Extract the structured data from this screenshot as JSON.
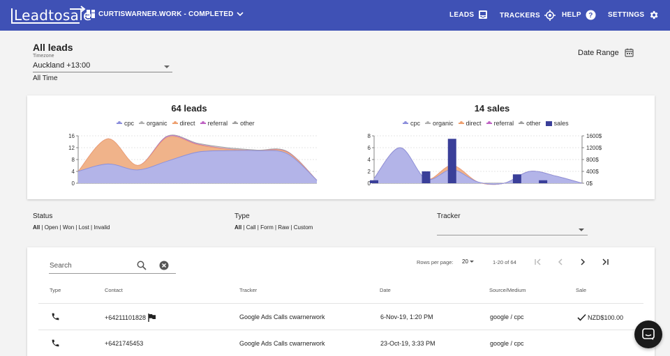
{
  "brand": {
    "name": "Leadtosale"
  },
  "project": {
    "name": "CURTISWARNER.WORK - COMPLETED"
  },
  "nav": [
    {
      "label": "LEADS",
      "icon": "inbox-icon"
    },
    {
      "label": "TRACKERS",
      "icon": "crosshair-icon"
    },
    {
      "label": "HELP",
      "icon": "help-circle-icon"
    },
    {
      "label": "SETTINGS",
      "icon": "gear-icon"
    }
  ],
  "page": {
    "title": "All leads",
    "timezone_label": "Timezone",
    "timezone_value": "Auckland +13:00",
    "period": "All Time",
    "date_range_label": "Date Range"
  },
  "leads_chart": {
    "title": "64 leads",
    "legend": [
      "cpc",
      "organic",
      "direct",
      "referral",
      "other"
    ],
    "y_ticks": [
      "16",
      "12",
      "8",
      "4",
      "0"
    ]
  },
  "sales_chart": {
    "title": "14 sales",
    "legend": [
      "cpc",
      "organic",
      "direct",
      "referral",
      "other",
      "sales"
    ],
    "y_ticks_left": [
      "8",
      "6",
      "4",
      "2",
      "0"
    ],
    "y_ticks_right": [
      "1600$",
      "1200$",
      "800$",
      "400$",
      "0$"
    ]
  },
  "chart_data": [
    {
      "type": "area",
      "title": "64 leads",
      "ylim": [
        0,
        16
      ],
      "x": [
        0,
        1,
        2,
        3,
        4,
        5,
        6,
        7,
        8
      ],
      "series": [
        {
          "name": "cpc",
          "values": [
            4,
            6.5,
            4.5,
            7.5,
            10.5,
            11,
            11,
            10,
            1
          ]
        },
        {
          "name": "organic",
          "values": [
            4,
            6.5,
            4.5,
            7.5,
            10.5,
            11,
            11,
            10,
            1
          ]
        },
        {
          "name": "direct",
          "values": [
            4,
            15,
            6,
            15.5,
            13,
            11.5,
            11,
            10.5,
            1
          ]
        },
        {
          "name": "referral",
          "values": [
            4,
            15,
            6,
            15.8,
            13.2,
            11.6,
            11,
            10.6,
            1
          ]
        },
        {
          "name": "other",
          "values": [
            4,
            15,
            6,
            16,
            13.5,
            12,
            11.2,
            10.8,
            1
          ]
        }
      ],
      "legend_position": "top",
      "grid": true
    },
    {
      "type": "area",
      "title": "14 sales",
      "ylim": [
        0,
        8
      ],
      "y2lim": [
        0,
        1600
      ],
      "x": [
        0,
        1,
        2,
        3,
        4,
        5,
        6,
        7,
        8
      ],
      "series": [
        {
          "name": "cpc",
          "values": [
            0.8,
            6,
            0.7,
            2.3,
            0.2,
            0,
            2,
            1.2,
            0
          ]
        },
        {
          "name": "organic",
          "values": [
            0.8,
            6,
            0.7,
            2.3,
            0.2,
            0,
            2,
            1.2,
            0
          ]
        },
        {
          "name": "direct",
          "values": [
            0.8,
            6,
            0.7,
            3,
            0.2,
            0,
            2,
            1.2,
            0
          ]
        },
        {
          "name": "referral",
          "values": [
            0.8,
            6,
            0.7,
            3,
            0.2,
            0,
            2,
            1.2,
            0
          ]
        },
        {
          "name": "other",
          "values": [
            0.8,
            6,
            0.7,
            3,
            0.2,
            0,
            2,
            1.2,
            0
          ]
        }
      ],
      "bars": {
        "name": "sales",
        "x": [
          0,
          2,
          3,
          5.5,
          6.5
        ],
        "values": [
          100,
          400,
          1500,
          300,
          100
        ]
      },
      "legend_position": "top",
      "grid": true
    }
  ],
  "filters": {
    "status": {
      "label": "Status",
      "options": "All | Open | Won | Lost | Invalid"
    },
    "type": {
      "label": "Type",
      "options": "All | Call | Form | Raw | Custom"
    },
    "tracker": {
      "label": "Tracker",
      "value": ""
    }
  },
  "table": {
    "search_placeholder": "Search",
    "rows_per_page_label": "Rows per page:",
    "rows_per_page": "20",
    "range": "1-20 of 64",
    "columns": [
      "Type",
      "Contact",
      "Tracker",
      "Date",
      "Source/Medium",
      "Sale"
    ],
    "rows": [
      {
        "type": "phone-icon",
        "contact": "+64211101828",
        "flag": true,
        "tracker": "Google Ads Calls cwarnerwork",
        "date": "6-Nov-19, 1:20 PM",
        "source": "google / cpc",
        "sale": "NZD$100.00"
      },
      {
        "type": "phone-icon",
        "contact": "+6421745453",
        "flag": false,
        "tracker": "Google Ads Calls cwarnerwork",
        "date": "23-Oct-19, 3:33 PM",
        "source": "google / cpc",
        "sale": ""
      }
    ]
  },
  "colors": {
    "primary": "#3f51b5",
    "cpc": "#8c8fdc",
    "organic": "#b0b0b0",
    "direct": "#eea070",
    "referral": "#c064c4",
    "other": "#a0a0a0",
    "sales_bar": "#3a3f99"
  }
}
